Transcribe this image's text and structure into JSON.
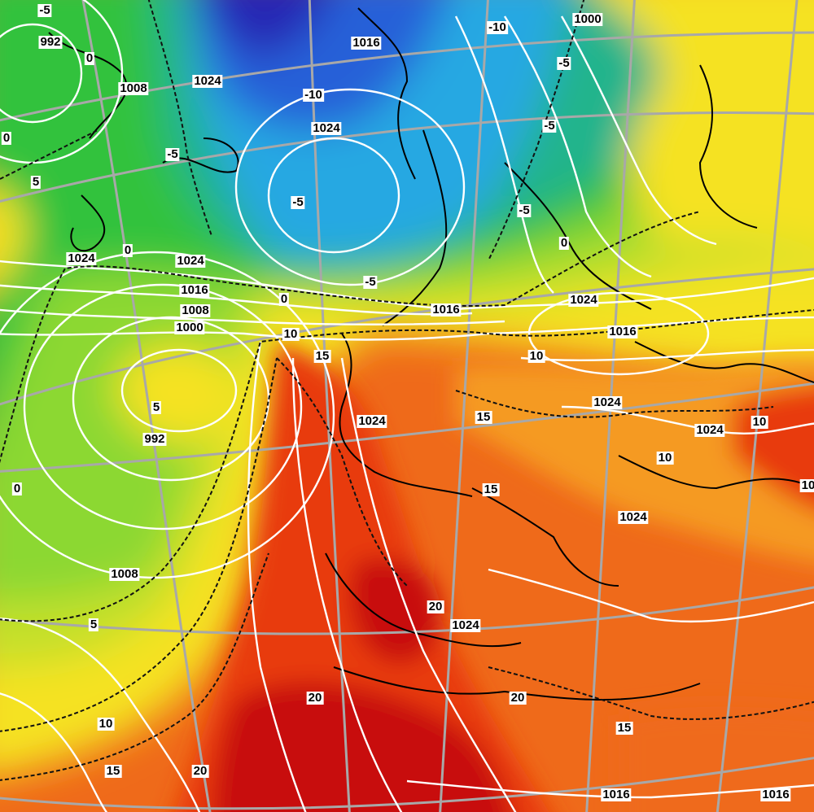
{
  "map": {
    "palette": {
      "red_dark": "#c80c0c",
      "red": "#e83a10",
      "orange": "#ef6a1a",
      "orange_light": "#f59a24",
      "yellow": "#f5e222",
      "yellow_green": "#c4e02a",
      "green_light": "#8cd832",
      "green": "#32c23c",
      "teal": "#20b48c",
      "cyan": "#28a8e2",
      "blue": "#2660d8",
      "blue_dark": "#2828b4",
      "isobar": "#ffffff",
      "isotherm": "#111111",
      "graticule": "#a8a8a8"
    },
    "pressure_labels": [
      "992",
      "1008",
      "1024",
      "1016",
      "1024",
      "1000",
      "1024",
      "1016",
      "1008",
      "1000",
      "1024",
      "1016",
      "1016",
      "1024",
      "1024",
      "992",
      "1008",
      "1024",
      "1024",
      "1024",
      "1024",
      "1016",
      "1016"
    ],
    "temperature_labels": [
      "-5",
      "0",
      "0",
      "-5",
      "-10",
      "-10",
      "-5",
      "-5",
      "-5",
      "-5",
      "-5",
      "5",
      "0",
      "0",
      "0",
      "0",
      "10",
      "15",
      "5",
      "10",
      "15",
      "10",
      "15",
      "10",
      "10",
      "0",
      "5",
      "20",
      "20",
      "10",
      "15",
      "20",
      "15",
      "20"
    ]
  }
}
